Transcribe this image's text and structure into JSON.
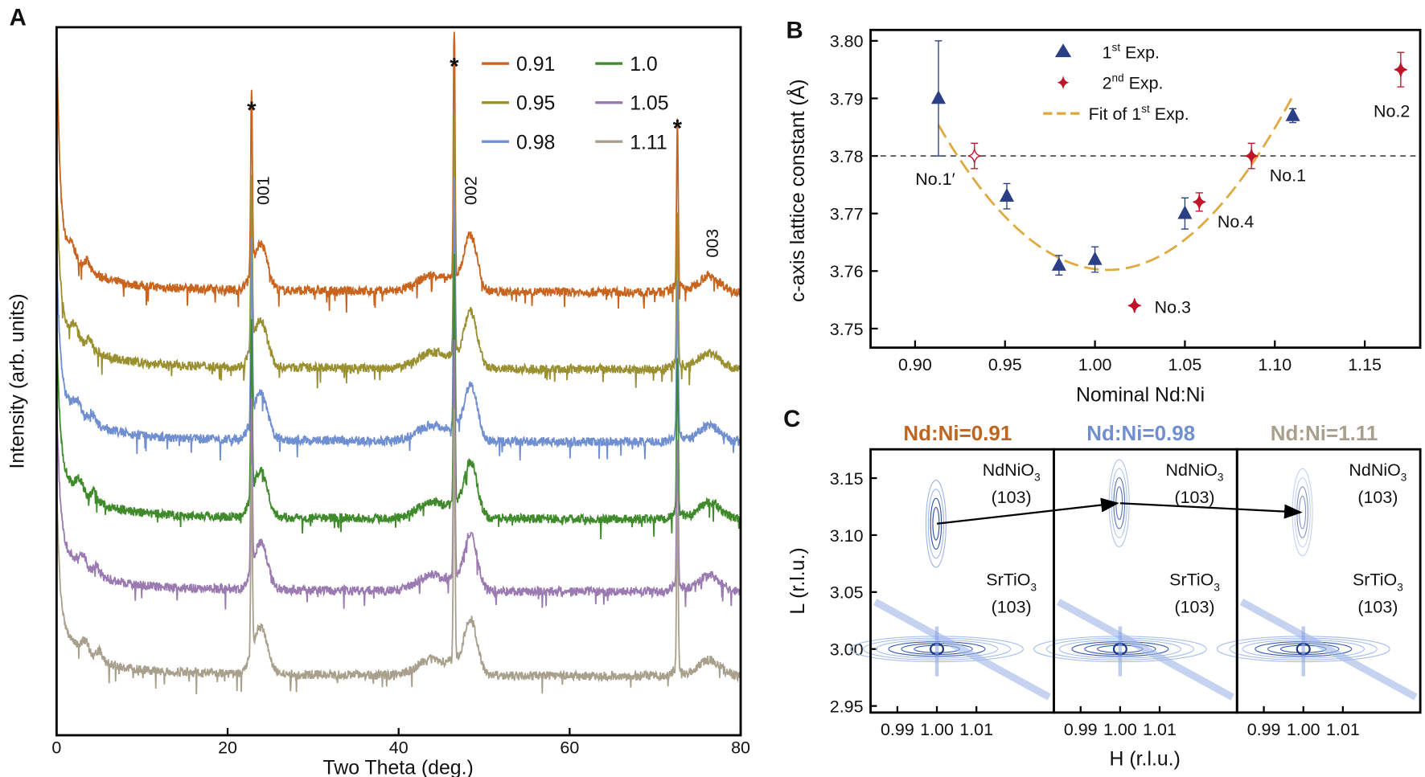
{
  "panels": {
    "a": "A",
    "b": "B",
    "c": "C"
  },
  "chart_data": [
    {
      "type": "line",
      "title": "",
      "xlabel": "Two Theta (deg.)",
      "ylabel": "Intensity (arb. units)",
      "xlim": [
        0,
        80
      ],
      "xticks": [
        "0",
        "20",
        "40",
        "60",
        "80"
      ],
      "series": [
        {
          "name": "0.91",
          "color": "#c8641e"
        },
        {
          "name": "0.95",
          "color": "#9a9030"
        },
        {
          "name": "0.98",
          "color": "#6f8fd0"
        },
        {
          "name": "1.0",
          "color": "#3f8a2a"
        },
        {
          "name": "1.05",
          "color": "#9a7ab0"
        },
        {
          "name": "1.11",
          "color": "#a8a08c"
        }
      ],
      "substrate_peaks": [
        22.8,
        46.5,
        72.6
      ],
      "substrate_marker": "*",
      "film_peaks": [
        {
          "label": "001",
          "x": 23.9
        },
        {
          "label": "002",
          "x": 48.4
        },
        {
          "label": "003",
          "x": 76.3
        }
      ],
      "legend": "top-right"
    },
    {
      "type": "scatter",
      "xlabel": "Nominal Nd:Ni",
      "ylabel": "c-axis lattice constant (Å)",
      "xlim": [
        0.875,
        1.18
      ],
      "ylim": [
        3.748,
        3.802
      ],
      "xticks": [
        "0.90",
        "0.95",
        "1.00",
        "1.05",
        "1.10",
        "1.15"
      ],
      "yticks": [
        "3.75",
        "3.76",
        "3.77",
        "3.78",
        "3.79",
        "3.80"
      ],
      "reference_line": 3.78,
      "legend": {
        "first": {
          "main": "1",
          "sup": "st",
          "rest": " Exp."
        },
        "second": {
          "main": "2",
          "sup": "nd",
          "rest": " Exp."
        },
        "fit": {
          "main": "Fit of 1",
          "sup": "st",
          "rest": " Exp."
        }
      },
      "series": [
        {
          "name": "1st Exp.",
          "color": "#2b3f86",
          "marker": "triangle",
          "points": [
            {
              "x": 0.913,
              "y": 3.79,
              "err": 0.01
            },
            {
              "x": 0.951,
              "y": 3.773,
              "err": 0.0022
            },
            {
              "x": 0.98,
              "y": 3.761,
              "err": 0.0017
            },
            {
              "x": 1.0,
              "y": 3.762,
              "err": 0.0022
            },
            {
              "x": 1.05,
              "y": 3.77,
              "err": 0.0027
            },
            {
              "x": 1.11,
              "y": 3.787,
              "err": 0.0012
            }
          ]
        },
        {
          "name": "2nd Exp.",
          "color": "#c0142a",
          "marker": "diamond",
          "points": [
            {
              "x": 0.933,
              "y": 3.78,
              "err": 0.0022,
              "label": "No.1′",
              "hollow": true
            },
            {
              "x": 1.022,
              "y": 3.754,
              "err": 0,
              "label": "No.3"
            },
            {
              "x": 1.058,
              "y": 3.772,
              "err": 0.0016,
              "label": "No.4"
            },
            {
              "x": 1.087,
              "y": 3.78,
              "err": 0.0022,
              "label": "No.1"
            },
            {
              "x": 1.17,
              "y": 3.795,
              "err": 0.003,
              "label": "No.2"
            }
          ]
        }
      ],
      "fit": {
        "color": "#e0aa40",
        "x_range": [
          0.913,
          1.11
        ],
        "min_x": 1.007,
        "min_y": 3.7602,
        "curvature": 2.85
      }
    },
    {
      "type": "heatmap",
      "xlabel": "H (r.l.u.)",
      "ylabel": "L (r.l.u.)",
      "xticks": [
        "0.99",
        "1.00",
        "1.01"
      ],
      "yticks": [
        "2.95",
        "3.00",
        "3.05",
        "3.10",
        "3.15"
      ],
      "ylim": [
        2.95,
        3.17
      ],
      "film_label": {
        "main": "NdNiO",
        "sub": "3",
        "hkl": "(103)"
      },
      "substrate_label": {
        "main": "SrTiO",
        "sub": "3",
        "hkl": "(103)"
      },
      "maps": [
        {
          "title": "Nd:Ni=0.91",
          "color": "#c0651f",
          "film_L": 3.11
        },
        {
          "title": "Nd:Ni=0.98",
          "color": "#6f8fd0",
          "film_L": 3.128
        },
        {
          "title": "Nd:Ni=1.11",
          "color": "#a8a08c",
          "film_L": 3.12
        }
      ]
    }
  ]
}
